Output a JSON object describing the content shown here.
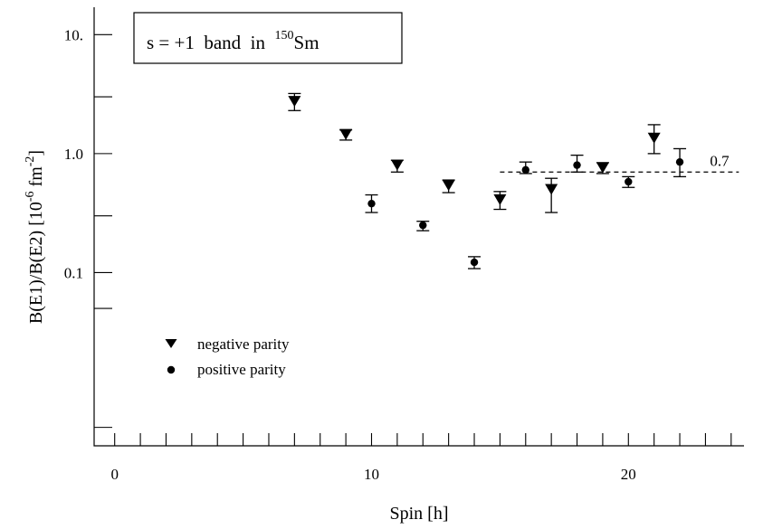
{
  "chart_data": {
    "type": "scatter",
    "title": {
      "prefix": "s = +1  band  in  ",
      "superscript": "150",
      "suffix": "Sm"
    },
    "xlabel": "Spin [h]",
    "ylabel": {
      "main": "B(E1)/B(E2) [10",
      "exp": "-6",
      "unit": " fm",
      "unit_exp": "-2",
      "close": "]"
    },
    "xlim": [
      -0.8,
      24.5
    ],
    "ylim": [
      0.0035,
      17
    ],
    "yscale": "log",
    "x_tick_labels": [
      {
        "x": 0,
        "label": "0"
      },
      {
        "x": 10,
        "label": "10"
      },
      {
        "x": 20,
        "label": "20"
      }
    ],
    "y_tick_labels": [
      {
        "y": 0.1,
        "label": "0.1"
      },
      {
        "y": 1.0,
        "label": "1.0"
      },
      {
        "y": 10,
        "label": "10."
      }
    ],
    "x_minor_ticks": [
      1,
      2,
      3,
      4,
      5,
      6,
      7,
      8,
      9,
      11,
      12,
      13,
      14,
      15,
      16,
      17,
      18,
      19,
      21,
      22,
      23,
      24
    ],
    "y_minor_ticks": [
      0.005,
      0.05,
      0.3,
      3
    ],
    "legend": {
      "position": "middle-left",
      "entries": [
        "negative parity",
        "positive parity"
      ]
    },
    "series": [
      {
        "name": "negative parity",
        "marker": "triangle-down",
        "x": [
          7,
          9,
          11,
          13,
          15,
          17,
          19,
          21
        ],
        "y": [
          2.75,
          1.45,
          0.8,
          0.54,
          0.41,
          0.5,
          0.76,
          1.35
        ],
        "err_low": [
          2.3,
          1.3,
          0.7,
          0.47,
          0.34,
          0.32,
          0.68,
          1.0
        ],
        "err_high": [
          3.2,
          1.58,
          0.88,
          0.6,
          0.48,
          0.62,
          0.84,
          1.75
        ]
      },
      {
        "name": "positive parity",
        "marker": "circle",
        "x": [
          10,
          12,
          14,
          16,
          18,
          20,
          22
        ],
        "y": [
          0.38,
          0.25,
          0.122,
          0.73,
          0.8,
          0.58,
          0.85
        ],
        "err_low": [
          0.32,
          0.225,
          0.108,
          0.68,
          0.7,
          0.52,
          0.64
        ],
        "err_high": [
          0.45,
          0.27,
          0.136,
          0.85,
          0.97,
          0.64,
          1.1
        ]
      }
    ],
    "reference_line": {
      "y": 0.7,
      "x_start": 15,
      "x_end": 24.3,
      "label": "0.7"
    }
  }
}
